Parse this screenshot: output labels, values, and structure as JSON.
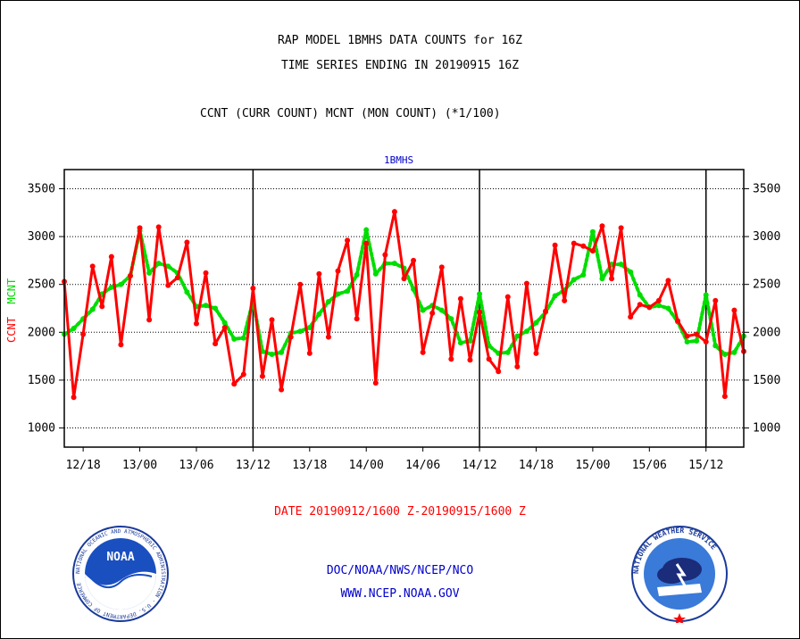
{
  "header": {
    "title_line1": "RAP MODEL 1BMHS DATA COUNTS for 16Z",
    "title_line2": "TIME SERIES ENDING IN 20190915 16Z",
    "subtitle": "CCNT (CURR COUNT) MCNT (MON COUNT) (*1/100)",
    "panel_label": "1BMHS"
  },
  "axis": {
    "ylabel_ccnt": "CCNT",
    "ylabel_mcnt": "MCNT"
  },
  "footer": {
    "date_range": "DATE 20190912/1600 Z-20190915/1600 Z",
    "credit_line1": "DOC/NOAA/NWS/NCEP/NCO",
    "credit_line2": "WWW.NCEP.NOAA.GOV"
  },
  "logos": {
    "left": "noaa-logo",
    "left_text": "NOAA",
    "left_ring_text": "NATIONAL OCEANIC AND ATMOSPHERIC ADMINISTRATION · U.S. DEPARTMENT OF COMMERCE",
    "right": "nws-logo",
    "right_ring_text": "NATIONAL WEATHER SERVICE"
  },
  "colors": {
    "ccnt": "#ff0000",
    "mcnt": "#00dd00",
    "text_blue": "#0000cc",
    "grid": "#000000"
  },
  "chart_data": {
    "type": "line",
    "title": "RAP MODEL 1BMHS DATA COUNTS for 16Z",
    "xlabel": "DATE 20190912/1600 Z-20190915/1600 Z",
    "ylabel": "CCNT  MCNT",
    "x_start": "12/16",
    "x_step_hours": 1,
    "x_tick_labels": [
      "12/18",
      "13/00",
      "13/06",
      "13/12",
      "13/18",
      "14/00",
      "14/06",
      "14/12",
      "14/18",
      "15/00",
      "15/06",
      "15/12"
    ],
    "x_tick_hours": [
      2,
      8,
      14,
      20,
      26,
      32,
      38,
      44,
      50,
      56,
      62,
      68
    ],
    "x_major_line_hours": [
      20,
      44,
      68
    ],
    "xlim_hours": [
      0,
      72
    ],
    "y_ticks": [
      1000,
      1500,
      2000,
      2500,
      3000,
      3500
    ],
    "ylim": [
      800,
      3700
    ],
    "grid": true,
    "series": [
      {
        "name": "CCNT",
        "style": "solid",
        "values": [
          2530,
          1320,
          1980,
          2690,
          2270,
          2790,
          1870,
          2590,
          3090,
          2130,
          3100,
          2490,
          2570,
          2940,
          2090,
          2620,
          1880,
          2050,
          1460,
          1560,
          2460,
          1540,
          2130,
          1400,
          1950,
          2500,
          1780,
          2610,
          1950,
          2640,
          2960,
          2140,
          2930,
          1470,
          2810,
          3260,
          2560,
          2750,
          1790,
          2200,
          2680,
          1720,
          2350,
          1710,
          2210,
          1720,
          1590,
          2370,
          1640,
          2510,
          1780,
          2220,
          2910,
          2330,
          2930,
          2900,
          2850,
          3110,
          2560,
          3090,
          2160,
          2290,
          2260,
          2330,
          2540,
          2120,
          1960,
          1980,
          1900,
          2330,
          1330,
          2230,
          1800
        ]
      },
      {
        "name": "MCNT",
        "style": "dotted",
        "values": [
          1980,
          2040,
          2140,
          2240,
          2400,
          2470,
          2500,
          2590,
          3060,
          2620,
          2720,
          2690,
          2620,
          2420,
          2270,
          2280,
          2250,
          2100,
          1930,
          1940,
          2330,
          1800,
          1770,
          1790,
          1990,
          2010,
          2050,
          2190,
          2320,
          2400,
          2430,
          2600,
          3070,
          2610,
          2720,
          2720,
          2670,
          2450,
          2230,
          2280,
          2230,
          2140,
          1890,
          1910,
          2400,
          1860,
          1780,
          1790,
          1960,
          2010,
          2100,
          2210,
          2380,
          2440,
          2550,
          2600,
          3050,
          2560,
          2710,
          2710,
          2630,
          2390,
          2260,
          2280,
          2250,
          2110,
          1900,
          1910,
          2390,
          1860,
          1770,
          1790,
          1960
        ]
      }
    ]
  }
}
